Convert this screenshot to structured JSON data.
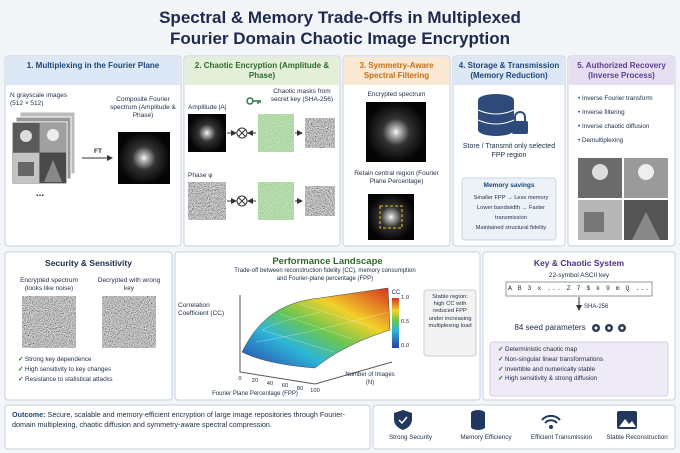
{
  "header": {
    "title_lines": [
      "Spectral & Memory Trade-Offs in Multiplexed",
      "Fourier Domain Chaotic Image Encryption"
    ]
  },
  "panels": {
    "multiplexing": {
      "heading": "1. Multiplexing in the Fourier Plane",
      "input_label": "N grayscale images (512 × 512)",
      "arrow_label": "FT",
      "output_label": "Composite Fourier spectrum (Amplitude & Phase)",
      "ellipsis": "..."
    },
    "encryption": {
      "heading": "2. Chaotic Encryption (Amplitude & Phase)",
      "mask_label": "Chaotic masks from secret key (SHA-256)",
      "amplitude_label": "Amplitude |A|",
      "phase_label": "Phase φ"
    },
    "filtering": {
      "heading": "3. Symmetry-Aware Spectral Filtering",
      "spectrum_label": "Encrypted spectrum",
      "retain_label": "Retain central region (Fourier Plane Percentage)"
    },
    "storage": {
      "heading": "4. Storage & Transmission (Memory Reduction)",
      "store_label": "Store / Transmit only selected FPP region",
      "savings_title": "Memory savings",
      "savings": [
        "Smaller FPP → Less memory",
        "Lower bandwidth → Faster transmission",
        "Maintained structural fidelity"
      ]
    },
    "recovery": {
      "heading": "5. Authorized Recovery (Inverse Process)",
      "steps": [
        "Inverse Fourier transform",
        "Inverse filtering",
        "Inverse chaotic diffusion",
        "Demultiplexing"
      ]
    }
  },
  "security": {
    "title": "Security & Sensitivity",
    "encrypted_label": "Encrypted spectrum (looks like noise)",
    "wrong_key_label": "Decrypted with wrong key",
    "points": [
      "Strong key dependence",
      "High sensitivity to key changes",
      "Resistance to statistical attacks"
    ]
  },
  "performance": {
    "title": "Performance Landscape",
    "subtitle": "Trade-off between reconstruction fidelity (CC), memory consumption and Fourier-plane percentage (FPP)",
    "z_label": "Correlation Coefficient (CC)",
    "x_label": "Fourier Plane Percentage (FPP)",
    "n_label": "Number of Images (N)",
    "x_ticks": [
      "0",
      "20",
      "40",
      "60",
      "80",
      "100"
    ],
    "colorbar_label": "CC",
    "colorbar_ticks": [
      "1.0",
      "0.5",
      "0.0"
    ],
    "note": "Stable region: high CC with reduced FPP under increasing multiplexing load"
  },
  "key_system": {
    "title": "Key & Chaotic System",
    "key_label": "22-symbol ASCII key",
    "key_string": "A B 3 x ... Z 7 $ k 9 m Q ...",
    "hash_label": "SHA-256",
    "seeds": "84 seed parameters",
    "properties": [
      "Deterministic chaotic map",
      "Non-singular linear transformations",
      "Invertible and numerically stable",
      "High sensitivity & strong diffusion"
    ]
  },
  "footer": {
    "outcome_label": "Outcome:",
    "outcome_text": "Secure, scalable and memory-efficient encryption of large image repositories through Fourier-domain multiplexing, chaotic diffusion and symmetry-aware spectral compression.",
    "badges": [
      "Strong Security",
      "Memory Efficiency",
      "Efficient Transmission",
      "Stable Reconstruction"
    ]
  }
}
